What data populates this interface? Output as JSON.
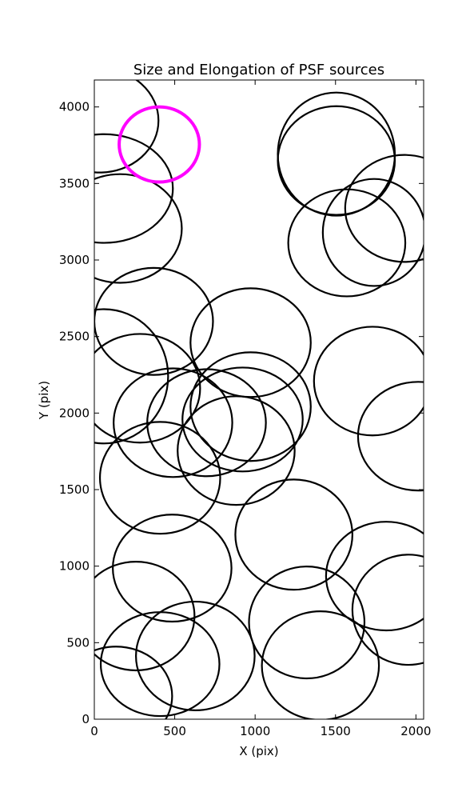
{
  "chart_data": {
    "type": "ellipse",
    "title": "Size and Elongation of PSF sources",
    "xlabel": "X (pix)",
    "ylabel": "Y (pix)",
    "x": [
      35,
      60,
      160,
      404,
      1505,
      1505,
      1929,
      1740,
      1570,
      369,
      972,
      60,
      284,
      1730,
      2014,
      489,
      698,
      972,
      922,
      882,
      409,
      484,
      1241,
      259,
      409,
      628,
      1321,
      1815,
      1954,
      1406,
      135
    ],
    "y": [
      3911,
      3467,
      3206,
      3755,
      3692,
      3650,
      3337,
      3180,
      3112,
      2599,
      2460,
      2240,
      2162,
      2209,
      1849,
      1937,
      1937,
      2042,
      1958,
      1755,
      1577,
      987,
      1206,
      674,
      360,
      413,
      632,
      935,
      715,
      350,
      151
    ],
    "width": [
      728,
      857,
      768,
      499,
      728,
      728,
      738,
      638,
      728,
      738,
      748,
      798,
      748,
      728,
      748,
      738,
      738,
      748,
      748,
      728,
      748,
      738,
      728,
      728,
      738,
      738,
      718,
      748,
      698,
      728,
      698
    ],
    "height": [
      679,
      710,
      710,
      491,
      804,
      710,
      699,
      699,
      699,
      699,
      710,
      877,
      710,
      710,
      710,
      710,
      699,
      710,
      679,
      710,
      731,
      699,
      720,
      710,
      679,
      710,
      731,
      710,
      720,
      710,
      647
    ],
    "colors": [
      "#000000",
      "#000000",
      "#000000",
      "#ff00ff",
      "#000000",
      "#000000",
      "#000000",
      "#000000",
      "#000000",
      "#000000",
      "#000000",
      "#000000",
      "#000000",
      "#000000",
      "#000000",
      "#000000",
      "#000000",
      "#000000",
      "#000000",
      "#000000",
      "#000000",
      "#000000",
      "#000000",
      "#000000",
      "#000000",
      "#000000",
      "#000000",
      "#000000",
      "#000000",
      "#000000",
      "#000000"
    ],
    "xlim": [
      0,
      2048
    ],
    "ylim": [
      0,
      4176
    ],
    "xticks": [
      0,
      500,
      1000,
      1500,
      2000
    ],
    "yticks": [
      0,
      500,
      1000,
      1500,
      2000,
      2500,
      3000,
      3500,
      4000
    ]
  }
}
